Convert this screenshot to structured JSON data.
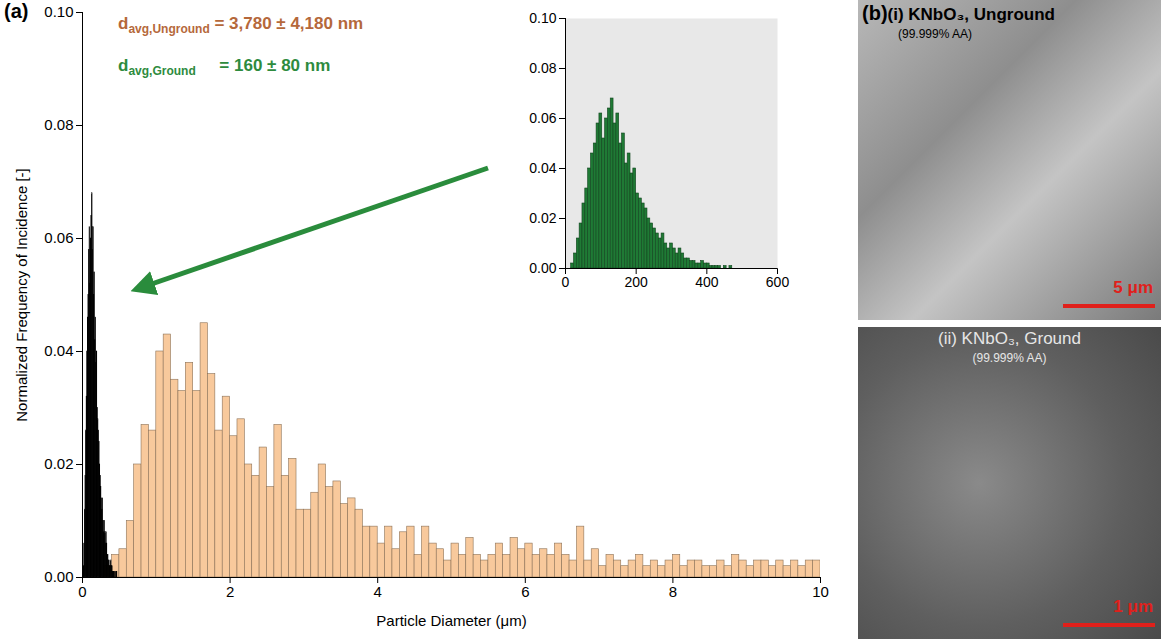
{
  "chart_data": [
    {
      "type": "histogram",
      "panel_label": "(a)",
      "x_label": "Particle Diameter (μm)",
      "y_label": "Normalized Frequency of Incidence [-]",
      "xlim": [
        0,
        10
      ],
      "xticks": [
        0,
        2,
        4,
        6,
        8,
        10
      ],
      "ylim": [
        0,
        0.1
      ],
      "yticks": [
        {
          "value": 0,
          "label": "0.00"
        },
        {
          "value": 0.02,
          "label": "0.02"
        },
        {
          "value": 0.04,
          "label": "0.04"
        },
        {
          "value": 0.06,
          "label": "0.06"
        },
        {
          "value": 0.08,
          "label": "0.08"
        },
        {
          "value": 0.1,
          "label": "0.10"
        }
      ],
      "annotations": [
        {
          "symbol": "d",
          "subscript": "avg,Unground",
          "text": " = 3,780 ± 4,180 nm",
          "color": "#b5683b"
        },
        {
          "symbol": "d",
          "subscript": "avg,Ground",
          "text": "     = 160 ± 80 nm",
          "color": "#2e8b3e"
        }
      ],
      "series": [
        {
          "color": "#f8c99c",
          "bins": [
            0.3,
            0.4,
            0.5,
            0.6,
            0.7,
            0.8,
            0.9,
            1.0,
            1.1,
            1.2,
            1.3,
            1.4,
            1.5,
            1.6,
            1.7,
            1.8,
            1.9,
            2.0,
            2.1,
            2.2,
            2.3,
            2.4,
            2.5,
            2.6,
            2.7,
            2.8,
            2.9,
            3.0,
            3.1,
            3.2,
            3.3,
            3.4,
            3.5,
            3.6,
            3.7,
            3.8,
            3.9,
            4.0,
            4.1,
            4.2,
            4.3,
            4.4,
            4.5,
            4.6,
            4.7,
            4.8,
            4.9,
            5.0,
            5.1,
            5.2,
            5.3,
            5.4,
            5.5,
            5.6,
            5.7,
            5.8,
            5.9,
            6.0,
            6.1,
            6.2,
            6.3,
            6.4,
            6.5,
            6.6,
            6.7,
            6.8,
            6.9,
            7.0,
            7.1,
            7.2,
            7.3,
            7.4,
            7.5,
            7.6,
            7.7,
            7.8,
            7.9,
            8.0,
            8.1,
            8.2,
            8.3,
            8.4,
            8.5,
            8.6,
            8.7,
            8.8,
            8.9,
            9.0,
            9.1,
            9.2,
            9.3,
            9.4,
            9.5,
            9.6,
            9.7,
            9.8,
            9.9,
            10.0
          ],
          "values": [
            0.002,
            0.004,
            0.005,
            0.01,
            0.02,
            0.027,
            0.026,
            0.04,
            0.043,
            0.035,
            0.033,
            0.038,
            0.033,
            0.045,
            0.036,
            0.026,
            0.032,
            0.025,
            0.028,
            0.02,
            0.018,
            0.023,
            0.016,
            0.027,
            0.018,
            0.021,
            0.012,
            0.012,
            0.015,
            0.02,
            0.016,
            0.017,
            0.013,
            0.014,
            0.012,
            0.009,
            0.009,
            0.006,
            0.009,
            0.005,
            0.008,
            0.009,
            0.004,
            0.009,
            0.006,
            0.005,
            0.003,
            0.006,
            0.004,
            0.007,
            0.004,
            0.003,
            0.004,
            0.006,
            0.004,
            0.007,
            0.005,
            0.006,
            0.004,
            0.005,
            0.004,
            0.006,
            0.004,
            0.003,
            0.009,
            0.003,
            0.005,
            0.002,
            0.004,
            0.003,
            0.002,
            0.003,
            0.004,
            0.002,
            0.003,
            0.002,
            0.003,
            0.004,
            0.002,
            0.003,
            0.003,
            0.002,
            0.002,
            0.003,
            0.002,
            0.004,
            0.003,
            0.002,
            0.003,
            0.003,
            0.002,
            0.003,
            0.002,
            0.003,
            0.002,
            0.003,
            0.003
          ]
        },
        {
          "color": "#000000",
          "bins": [
            0.016,
            0.024,
            0.032,
            0.04,
            0.048,
            0.056,
            0.064,
            0.072,
            0.08,
            0.088,
            0.096,
            0.104,
            0.112,
            0.12,
            0.128,
            0.136,
            0.144,
            0.152,
            0.16,
            0.168,
            0.176,
            0.184,
            0.192,
            0.2,
            0.208,
            0.216,
            0.224,
            0.232,
            0.24,
            0.248,
            0.256,
            0.264,
            0.272,
            0.28,
            0.288,
            0.296,
            0.304,
            0.312,
            0.32,
            0.328,
            0.336,
            0.344,
            0.352,
            0.36,
            0.368,
            0.376,
            0.384,
            0.392,
            0.4,
            0.408,
            0.416,
            0.424,
            0.432,
            0.44,
            0.448,
            0.456,
            0.464,
            0.472,
            0.48
          ],
          "values": [
            0.002,
            0.006,
            0.012,
            0.018,
            0.026,
            0.032,
            0.04,
            0.046,
            0.05,
            0.058,
            0.062,
            0.052,
            0.06,
            0.064,
            0.068,
            0.058,
            0.062,
            0.05,
            0.054,
            0.042,
            0.046,
            0.038,
            0.04,
            0.03,
            0.028,
            0.026,
            0.024,
            0.02,
            0.018,
            0.016,
            0.014,
            0.012,
            0.014,
            0.01,
            0.008,
            0.01,
            0.008,
            0.006,
            0.008,
            0.006,
            0.004,
            0.004,
            0.003,
            0.003,
            0.002,
            0.002,
            0.003,
            0.002,
            0.002,
            0.001,
            0.001,
            0.001,
            0.001,
            0,
            0.001,
            0,
            0.001,
            0
          ]
        }
      ]
    },
    {
      "type": "histogram",
      "xlim": [
        0,
        600
      ],
      "xticks": [
        0,
        200,
        400,
        600
      ],
      "ylim": [
        0,
        0.1
      ],
      "yticks": [
        {
          "value": 0,
          "label": "0.00"
        },
        {
          "value": 0.02,
          "label": "0.02"
        },
        {
          "value": 0.04,
          "label": "0.04"
        },
        {
          "value": 0.06,
          "label": "0.06"
        },
        {
          "value": 0.08,
          "label": "0.08"
        },
        {
          "value": 0.1,
          "label": "0.10"
        }
      ],
      "series": [
        {
          "color": "#1f7a35",
          "bins": [
            16,
            24,
            32,
            40,
            48,
            56,
            64,
            72,
            80,
            88,
            96,
            104,
            112,
            120,
            128,
            136,
            144,
            152,
            160,
            168,
            176,
            184,
            192,
            200,
            208,
            216,
            224,
            232,
            240,
            248,
            256,
            264,
            272,
            280,
            288,
            296,
            304,
            312,
            320,
            328,
            336,
            344,
            352,
            360,
            368,
            376,
            384,
            392,
            400,
            408,
            416,
            424,
            432,
            440,
            448,
            456,
            464,
            472,
            480
          ],
          "values": [
            0.002,
            0.006,
            0.012,
            0.018,
            0.026,
            0.032,
            0.04,
            0.046,
            0.05,
            0.058,
            0.062,
            0.052,
            0.06,
            0.064,
            0.068,
            0.058,
            0.062,
            0.05,
            0.054,
            0.042,
            0.046,
            0.038,
            0.04,
            0.03,
            0.028,
            0.026,
            0.024,
            0.02,
            0.018,
            0.016,
            0.014,
            0.012,
            0.014,
            0.01,
            0.008,
            0.01,
            0.008,
            0.006,
            0.008,
            0.006,
            0.004,
            0.004,
            0.003,
            0.003,
            0.002,
            0.002,
            0.003,
            0.002,
            0.002,
            0.001,
            0.001,
            0.001,
            0.001,
            0,
            0.001,
            0,
            0.001,
            0
          ]
        }
      ]
    }
  ],
  "images": {
    "panel_label": "(b)",
    "panels": [
      {
        "title": "(i) KNbO₃, Unground",
        "subtitle": "(99.999% AA)",
        "scale_bar": "5 μm"
      },
      {
        "title": "(ii) KNbO₃, Ground",
        "subtitle": "(99.999% AA)",
        "scale_bar": "1 μm"
      }
    ]
  }
}
